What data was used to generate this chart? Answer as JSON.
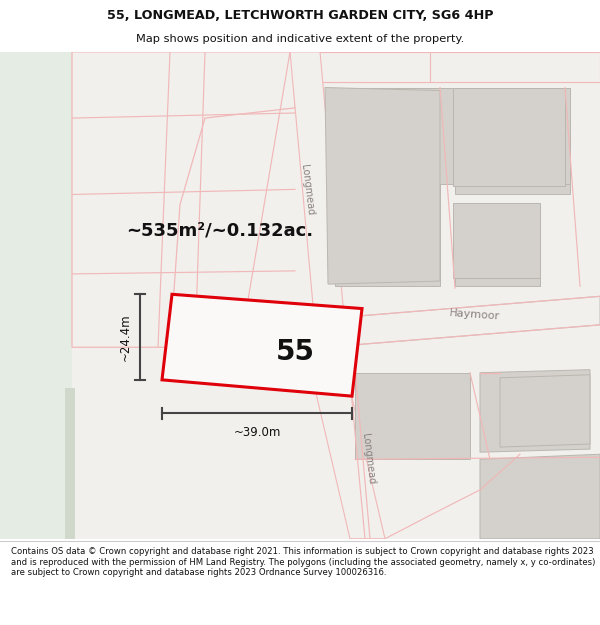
{
  "title_line1": "55, LONGMEAD, LETCHWORTH GARDEN CITY, SG6 4HP",
  "title_line2": "Map shows position and indicative extent of the property.",
  "footer_text": "Contains OS data © Crown copyright and database right 2021. This information is subject to Crown copyright and database rights 2023 and is reproduced with the permission of HM Land Registry. The polygons (including the associated geometry, namely x, y co-ordinates) are subject to Crown copyright and database rights 2023 Ordnance Survey 100026316.",
  "area_text": "~535m²/~0.132ac.",
  "width_text": "~39.0m",
  "height_text": "~24.4m",
  "plot_number": "55",
  "map_bg": "#f2f0ed",
  "green_bg": "#e5ece3",
  "road_pink": "#f0b8b8",
  "road_grey": "#c8c4c0",
  "building_fill": "#d4d0cb",
  "building_edge": "#bab6b0",
  "plot_bg": "#faf9f8",
  "red_color": "#e0000a",
  "label_color": "#888080",
  "dim_color": "#444444",
  "title_bg": "#ffffff",
  "footer_bg": "#ffffff"
}
